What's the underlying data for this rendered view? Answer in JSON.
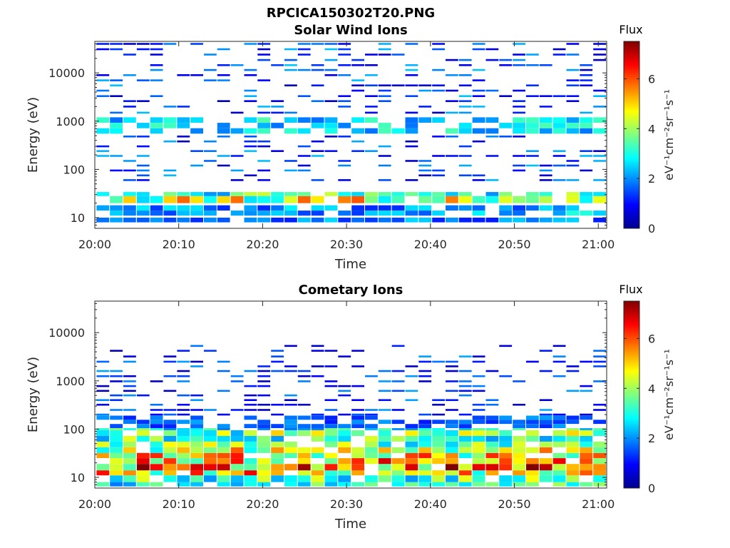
{
  "figure": {
    "title": "RPCICA150302T20.PNG"
  },
  "colormap": "jet",
  "chart_data": [
    {
      "type": "heatmap",
      "title": "Solar Wind Ions",
      "xlabel": "Time",
      "ylabel": "Energy (eV)",
      "x_ticks": [
        "20:00",
        "20:10",
        "20:20",
        "20:30",
        "20:40",
        "20:50",
        "21:00"
      ],
      "xlim_minutes": [
        0,
        61
      ],
      "y_scale": "log",
      "y_ticks": [
        "10",
        "100",
        "1000",
        "10000"
      ],
      "ylim": [
        6,
        45000
      ],
      "colorbar": {
        "label": "Flux",
        "unit": "eV⁻¹cm⁻²sr⁻¹s⁻¹",
        "ticks": [
          "0",
          "2",
          "4",
          "6"
        ],
        "range": [
          0,
          7.5
        ]
      },
      "time_columns_min": [
        0.2,
        1.8,
        3.4,
        5.0,
        6.6,
        8.2,
        9.8,
        11.4,
        13.0,
        14.6,
        16.2,
        17.8,
        19.4,
        21.0,
        22.6,
        24.2,
        25.8,
        27.4,
        29.0,
        30.6,
        32.2,
        33.8,
        35.4,
        37.0,
        38.6,
        40.2,
        41.8,
        43.4,
        45.0,
        46.6,
        48.2,
        49.8,
        51.4,
        53.0,
        54.6,
        56.2,
        57.8,
        59.4
      ],
      "low_energy_band_eV": [
        [
          14,
          18,
          2.2
        ],
        [
          20,
          28,
          4.6
        ],
        [
          28,
          34,
          3.4
        ],
        [
          8,
          10,
          2.0
        ],
        [
          11,
          14,
          2.4
        ]
      ],
      "mid_energy_band_eV": [
        [
          550,
          1200,
          2.9
        ]
      ],
      "sparse_levels_eV": [
        60,
        75,
        95,
        120,
        150,
        190,
        240,
        300,
        380,
        480,
        1500,
        2000,
        2600,
        3300,
        4300,
        5500,
        7000,
        9000,
        11500,
        14500,
        18500,
        24000,
        31000,
        40000
      ],
      "sparse_value_range": [
        0.3,
        2.4
      ]
    },
    {
      "type": "heatmap",
      "title": "Cometary Ions",
      "xlabel": "Time",
      "ylabel": "Energy (eV)",
      "x_ticks": [
        "20:00",
        "20:10",
        "20:20",
        "20:30",
        "20:40",
        "20:50",
        "21:00"
      ],
      "xlim_minutes": [
        0,
        61
      ],
      "y_scale": "log",
      "y_ticks": [
        "10",
        "100",
        "1000",
        "10000"
      ],
      "ylim": [
        6,
        45000
      ],
      "colorbar": {
        "label": "Flux",
        "unit": "eV⁻¹cm⁻²sr⁻¹s⁻¹",
        "ticks": [
          "0",
          "2",
          "4",
          "6"
        ],
        "range": [
          0,
          7.5
        ]
      },
      "time_columns_min": [
        0.2,
        1.8,
        3.4,
        5.0,
        6.6,
        8.2,
        9.8,
        11.4,
        13.0,
        14.6,
        16.2,
        17.8,
        19.4,
        21.0,
        22.6,
        24.2,
        25.8,
        27.4,
        29.0,
        30.6,
        32.2,
        33.8,
        35.4,
        37.0,
        38.6,
        40.2,
        41.8,
        43.4,
        45.0,
        46.6,
        48.2,
        49.8,
        51.4,
        53.0,
        54.6,
        56.2,
        57.8,
        59.4
      ],
      "low_energy_band_eV": [
        [
          6.5,
          8,
          3.2
        ],
        [
          8,
          11,
          3.6
        ],
        [
          11,
          14,
          5.2
        ],
        [
          14,
          19,
          6.0
        ],
        [
          19,
          25,
          5.4
        ],
        [
          25,
          32,
          5.0
        ],
        [
          32,
          42,
          4.6
        ],
        [
          42,
          55,
          3.8
        ],
        [
          55,
          72,
          3.6
        ],
        [
          72,
          95,
          3.9
        ],
        [
          95,
          105,
          3.0
        ]
      ],
      "mid_energy_band_eV": [
        [
          105,
          190,
          1.8
        ]
      ],
      "sparse_levels_eV": [
        200,
        250,
        320,
        400,
        500,
        620,
        780,
        980,
        1250,
        1600,
        2000,
        2500,
        3200,
        4200,
        5300
      ],
      "sparse_value_range": [
        0.3,
        2.2
      ]
    }
  ]
}
